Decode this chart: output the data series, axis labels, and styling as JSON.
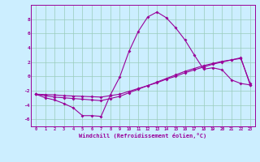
{
  "xlabel": "Windchill (Refroidissement éolien,°C)",
  "x": [
    0,
    1,
    2,
    3,
    4,
    5,
    6,
    7,
    8,
    9,
    10,
    11,
    12,
    13,
    14,
    15,
    16,
    17,
    18,
    19,
    20,
    21,
    22,
    23
  ],
  "line1": [
    -2.5,
    -3.0,
    -3.3,
    -3.8,
    -4.4,
    -5.5,
    -5.5,
    -5.6,
    -2.6,
    -0.1,
    3.5,
    6.3,
    8.3,
    9.0,
    8.2,
    6.8,
    5.1,
    3.0,
    1.0,
    1.2,
    0.9,
    -0.5,
    -1.0,
    -1.2
  ],
  "line2": [
    -2.5,
    -2.7,
    -2.9,
    -3.0,
    -3.1,
    -3.2,
    -3.3,
    -3.4,
    -3.1,
    -2.8,
    -2.3,
    -1.8,
    -1.3,
    -0.8,
    -0.3,
    0.2,
    0.7,
    1.1,
    1.5,
    1.8,
    2.1,
    2.3,
    2.6,
    -1.2
  ],
  "line3": [
    -2.5,
    -2.55,
    -2.6,
    -2.7,
    -2.75,
    -2.8,
    -2.85,
    -2.9,
    -2.7,
    -2.5,
    -2.1,
    -1.7,
    -1.3,
    -0.9,
    -0.4,
    0.0,
    0.5,
    0.9,
    1.3,
    1.7,
    2.0,
    2.3,
    2.5,
    -1.0
  ],
  "bg_color": "#cceeff",
  "line_color": "#990099",
  "grid_color": "#99ccbb",
  "ylim": [
    -7,
    10
  ],
  "xlim": [
    -0.5,
    23.5
  ],
  "yticks": [
    -6,
    -4,
    -2,
    0,
    2,
    4,
    6,
    8
  ],
  "xticks": [
    0,
    1,
    2,
    3,
    4,
    5,
    6,
    7,
    8,
    9,
    10,
    11,
    12,
    13,
    14,
    15,
    16,
    17,
    18,
    19,
    20,
    21,
    22,
    23
  ]
}
